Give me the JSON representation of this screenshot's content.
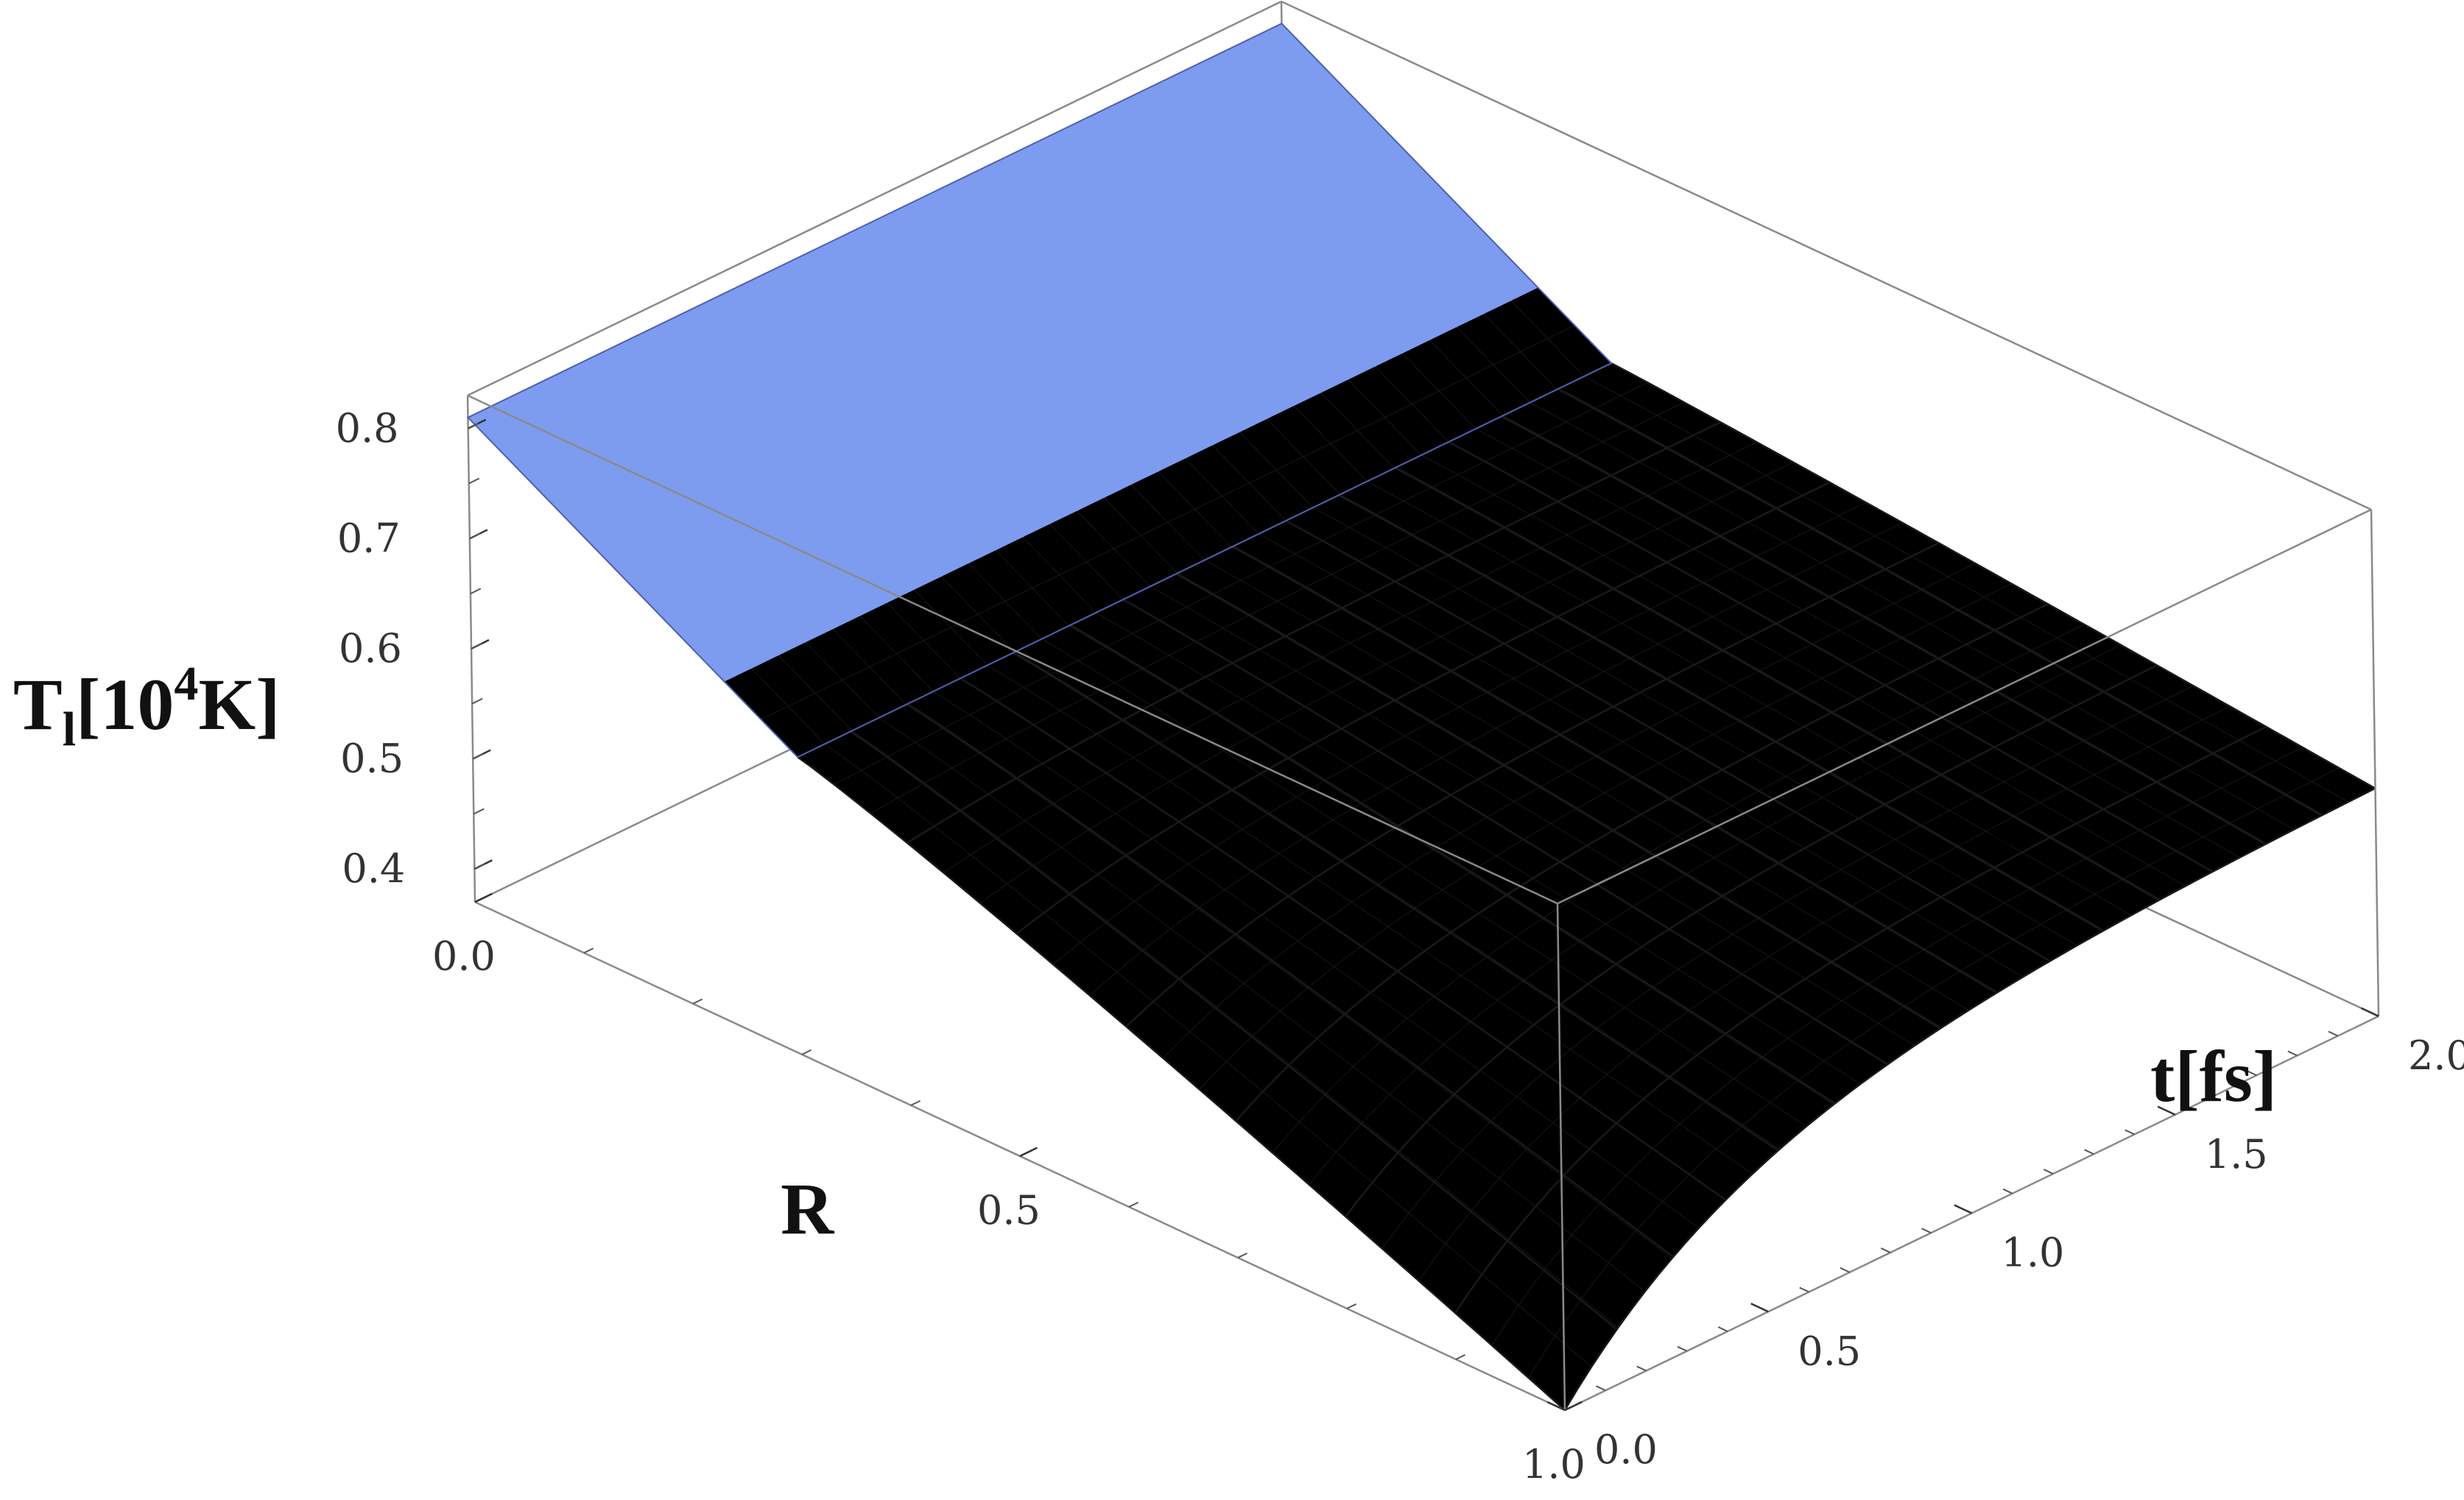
{
  "chart_data": {
    "type": "surface3d",
    "xlabel": "R",
    "ylabel": "t[fs]",
    "zlabel": {
      "base": "T",
      "sub": "l",
      "bracket_open": "[",
      "mantissa": "10",
      "exp": "4",
      "unit": "K]"
    },
    "x_ticks": [
      "0.0",
      "0.5",
      "1.0"
    ],
    "y_ticks": [
      "0.0",
      "0.5",
      "1.0",
      "1.5",
      "2.0"
    ],
    "z_ticks": [
      "0.4",
      "0.5",
      "0.6",
      "0.7",
      "0.8"
    ],
    "xlim": [
      0,
      1
    ],
    "ylim": [
      0,
      2
    ],
    "zlim": [
      0.37,
      0.83
    ],
    "surface": {
      "x_grid": [
        0,
        0.1,
        0.2,
        0.3,
        0.4,
        0.5,
        0.6,
        0.7,
        0.8,
        0.9,
        1.0
      ],
      "y_grid": [
        0,
        0.13,
        0.27,
        0.4,
        0.53,
        0.67,
        0.8,
        0.93,
        1.07,
        1.2,
        1.33,
        1.47,
        1.6,
        1.73,
        1.87,
        2.0
      ],
      "z_at_R0": 0.81,
      "z_at_R1_t0": 0.37,
      "z_at_R1_t2": 0.58,
      "colors": [
        "#7d9cef",
        "#a8d4f4",
        "#e8f6fb",
        "#b48cf0"
      ]
    }
  }
}
